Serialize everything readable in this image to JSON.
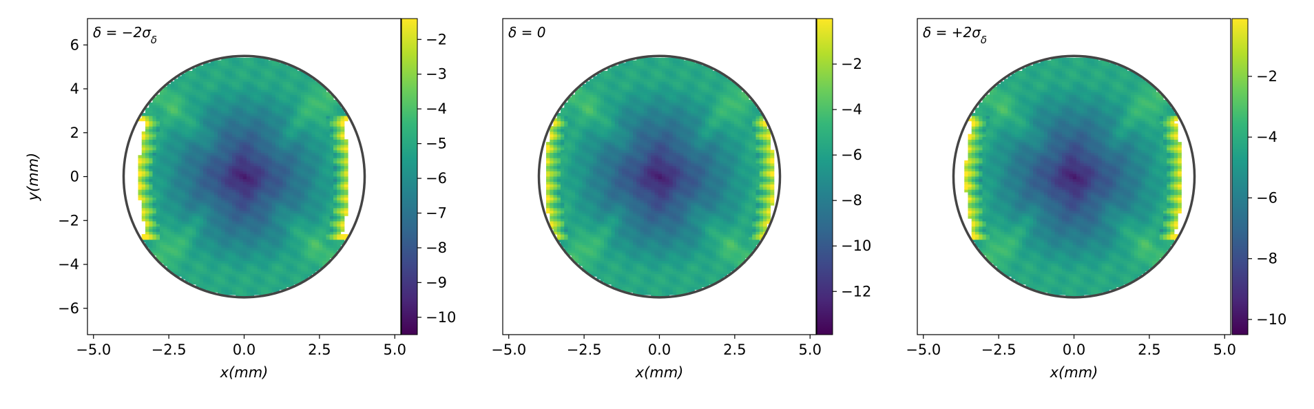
{
  "chart_data": [
    {
      "type": "heatmap",
      "panel_label": "δ = −2σ_δ",
      "xlabel": "x(mm)",
      "ylabel": "y(mm)",
      "xlim": [
        -5.2,
        5.2
      ],
      "ylim": [
        -7.2,
        7.2
      ],
      "xticks": [
        -5.0,
        -2.5,
        0.0,
        2.5,
        5.0
      ],
      "xtick_labels": [
        "−5.0",
        "−2.5",
        "0.0",
        "2.5",
        "5.0"
      ],
      "yticks": [
        6,
        4,
        2,
        0,
        -2,
        -4,
        -6
      ],
      "ytick_labels": [
        "6",
        "4",
        "2",
        "0",
        "−2",
        "−4",
        "−6"
      ],
      "colorbar": {
        "range": [
          -10.5,
          -1.4
        ],
        "ticks": [
          -2,
          -3,
          -4,
          -5,
          -6,
          -7,
          -8,
          -9,
          -10
        ],
        "tick_labels": [
          "−2",
          "−3",
          "−4",
          "−5",
          "−6",
          "−7",
          "−8",
          "−9",
          "−10"
        ]
      },
      "aperture_ellipse": {
        "center": [
          0,
          0
        ],
        "semi_x": 4.0,
        "semi_y": 5.5,
        "color": "#444444"
      },
      "map": {
        "min_value": -10.5,
        "max_value": -1.4,
        "core_halfwidth_x": 3.3,
        "edge_notch_halfwidth_x": 3.5
      },
      "show_ylabel": true
    },
    {
      "type": "heatmap",
      "panel_label": "δ = 0",
      "xlabel": "x(mm)",
      "ylabel": "",
      "xlim": [
        -5.2,
        5.2
      ],
      "ylim": [
        -7.2,
        7.2
      ],
      "xticks": [
        -5.0,
        -2.5,
        0.0,
        2.5,
        5.0
      ],
      "xtick_labels": [
        "−5.0",
        "−2.5",
        "0.0",
        "2.5",
        "5.0"
      ],
      "yticks": [],
      "ytick_labels": [],
      "colorbar": {
        "range": [
          -13.9,
          0.0
        ],
        "ticks": [
          -2,
          -4,
          -6,
          -8,
          -10,
          -12
        ],
        "tick_labels": [
          "−2",
          "−4",
          "−6",
          "−8",
          "−10",
          "−12"
        ]
      },
      "aperture_ellipse": {
        "center": [
          0,
          0
        ],
        "semi_x": 4.0,
        "semi_y": 5.5,
        "color": "#444444"
      },
      "map": {
        "min_value": -13.9,
        "max_value": 0.0,
        "core_halfwidth_x": 3.6,
        "edge_notch_halfwidth_x": 3.8
      },
      "show_ylabel": false
    },
    {
      "type": "heatmap",
      "panel_label": "δ = +2σ_δ",
      "xlabel": "x(mm)",
      "ylabel": "",
      "xlim": [
        -5.2,
        5.2
      ],
      "ylim": [
        -7.2,
        7.2
      ],
      "xticks": [
        -5.0,
        -2.5,
        0.0,
        2.5,
        5.0
      ],
      "xtick_labels": [
        "−5.0",
        "−2.5",
        "0.0",
        "2.5",
        "5.0"
      ],
      "yticks": [],
      "ytick_labels": [],
      "colorbar": {
        "range": [
          -10.5,
          -0.1
        ],
        "ticks": [
          -2,
          -4,
          -6,
          -8,
          -10
        ],
        "tick_labels": [
          "−2",
          "−4",
          "−6",
          "−8",
          "−10"
        ]
      },
      "aperture_ellipse": {
        "center": [
          0,
          0
        ],
        "semi_x": 4.0,
        "semi_y": 5.5,
        "color": "#444444"
      },
      "map": {
        "min_value": -10.5,
        "max_value": -0.1,
        "core_halfwidth_x": 3.3,
        "edge_notch_halfwidth_x": 3.6
      },
      "show_ylabel": false
    }
  ],
  "colors": {
    "viridis": [
      "#440154",
      "#482878",
      "#3e4989",
      "#31688e",
      "#26828e",
      "#1f9e89",
      "#35b779",
      "#6ece58",
      "#b5de2b",
      "#fde725"
    ],
    "frame": "#000000",
    "ellipse": "#444444"
  }
}
